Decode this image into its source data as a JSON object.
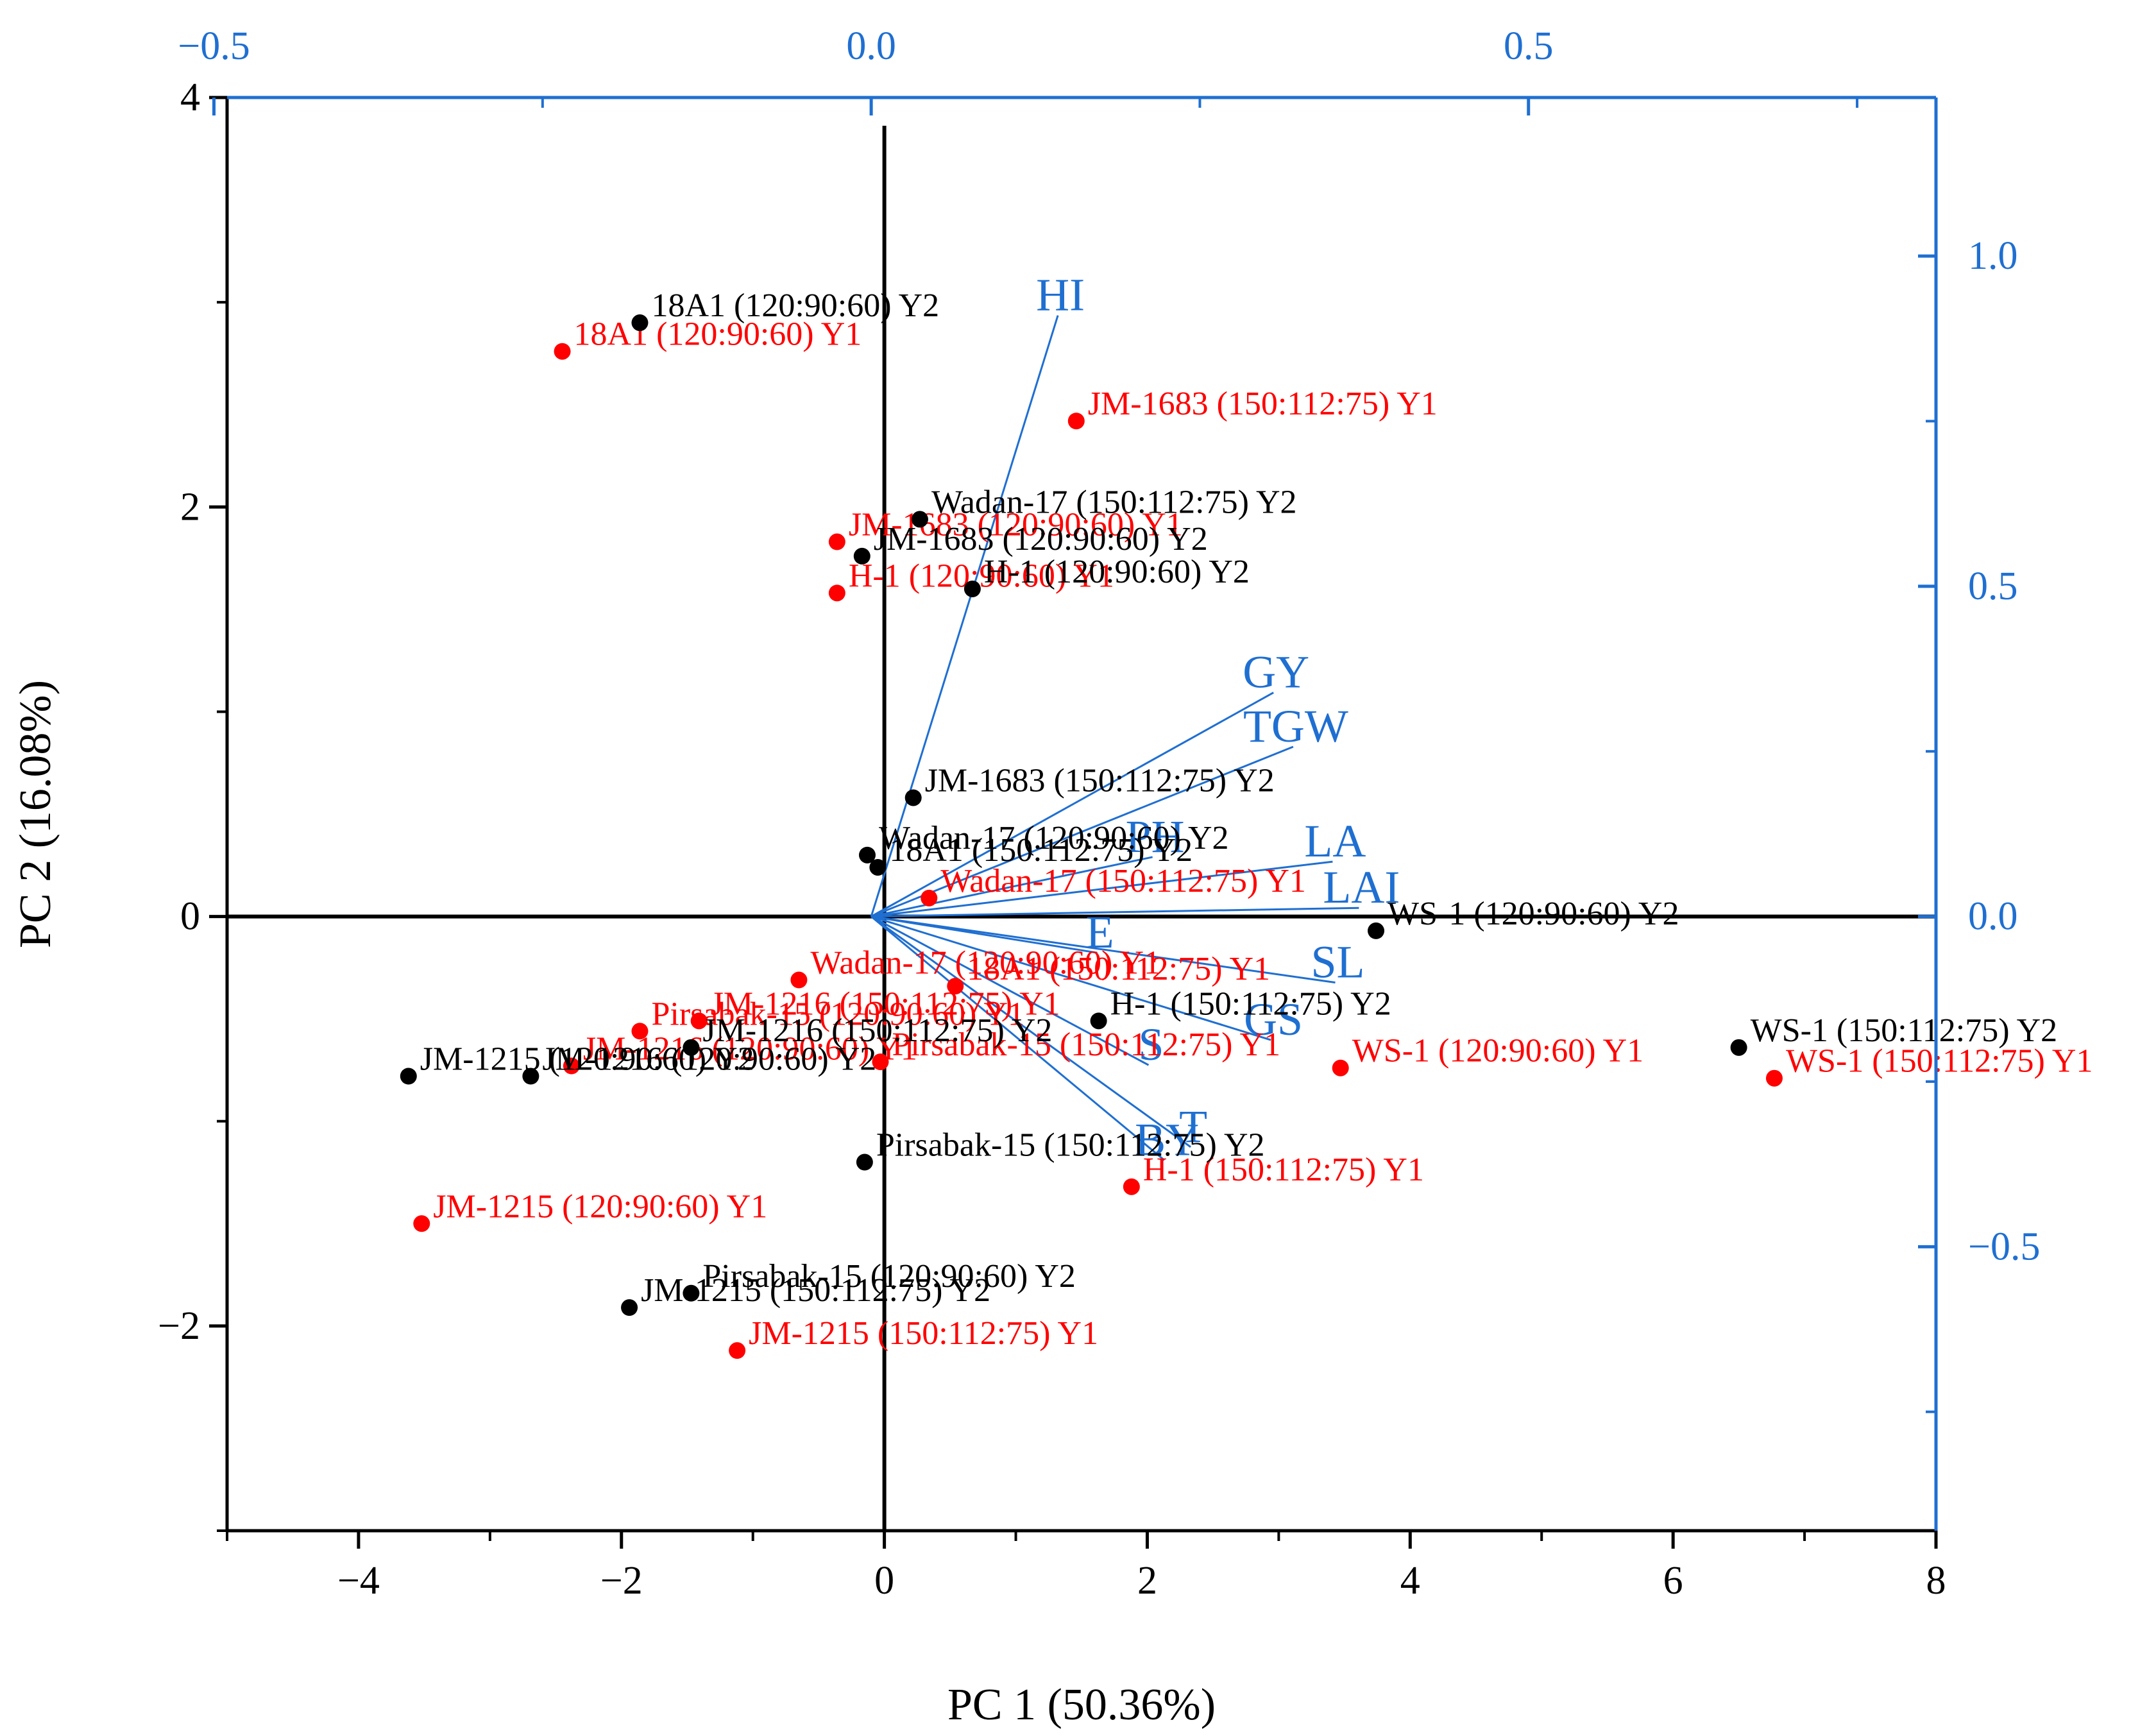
{
  "colors": {
    "y1": "#ff0000",
    "y2": "#000000",
    "loading": "#1f6fd1",
    "axis": "#000000"
  },
  "chart_data": {
    "type": "scatter",
    "subtype": "pca-biplot",
    "title": "",
    "xlabel": "PC 1 (50.36%)",
    "ylabel": "PC 2 (16.08%)",
    "xlim": [
      -5,
      8
    ],
    "ylim": [
      -3,
      4
    ],
    "xticks": [
      -4,
      -2,
      0,
      2,
      4,
      6,
      8
    ],
    "xtick_labels": [
      "−4",
      "−2",
      "0",
      "2",
      "4",
      "6",
      "8"
    ],
    "yticks": [
      -2,
      0,
      2,
      4
    ],
    "ytick_labels": [
      "−2",
      "0",
      "2",
      "4"
    ],
    "loading_axes": {
      "xlim": [
        -0.49,
        0.81
      ],
      "ylim": [
        -0.93,
        1.24
      ],
      "xticks": [
        -0.5,
        0.0,
        0.5
      ],
      "xtick_labels": [
        "−0.5",
        "0.0",
        "0.5"
      ],
      "yticks": [
        -0.5,
        0.0,
        0.5,
        1.0
      ],
      "ytick_labels": [
        "−0.5",
        "0.0",
        "0.5",
        "1.0"
      ]
    },
    "series": [
      {
        "name": "Y1",
        "color": "#ff0000",
        "points": [
          {
            "label": "18A1 (120:90:60) Y1",
            "x": -2.45,
            "y": 2.76
          },
          {
            "label": "JM-1683 (150:112:75) Y1",
            "x": 1.46,
            "y": 2.42
          },
          {
            "label": "JM-1683 (120:90:60) Y1",
            "x": -0.36,
            "y": 1.83
          },
          {
            "label": "H-1 (120:90:60) Y1",
            "x": -0.36,
            "y": 1.58
          },
          {
            "label": "Wadan-17 (150:112:75) Y1",
            "x": 0.34,
            "y": 0.09
          },
          {
            "label": "Wadan-17 (120:90:60) Y1",
            "x": -0.65,
            "y": -0.31
          },
          {
            "label": "18A1 (150:112:75) Y1",
            "x": 0.54,
            "y": -0.34
          },
          {
            "label": "Pirsabak-15 (120:90:60) Y1",
            "x": -1.86,
            "y": -0.56
          },
          {
            "label": "JM-1216 (150:112:75) Y1",
            "x": -1.41,
            "y": -0.51
          },
          {
            "label": "JM-1216 (120:90:60) Y1",
            "x": -2.38,
            "y": -0.73
          },
          {
            "label": "Pirsabak-15 (150:112:75) Y1",
            "x": -0.03,
            "y": -0.71
          },
          {
            "label": "WS-1 (120:90:60) Y1",
            "x": 3.47,
            "y": -0.74
          },
          {
            "label": "WS-1 (150:112:75) Y1",
            "x": 6.77,
            "y": -0.79
          },
          {
            "label": "H-1 (150:112:75) Y1",
            "x": 1.88,
            "y": -1.32
          },
          {
            "label": "JM-1215 (120:90:60) Y1",
            "x": -3.52,
            "y": -1.5
          },
          {
            "label": "JM-1215 (150:112:75) Y1",
            "x": -1.12,
            "y": -2.12
          }
        ]
      },
      {
        "name": "Y2",
        "color": "#000000",
        "points": [
          {
            "label": "18A1 (120:90:60) Y2",
            "x": -1.86,
            "y": 2.9
          },
          {
            "label": "Wadan-17 (150:112:75) Y2",
            "x": 0.27,
            "y": 1.94
          },
          {
            "label": "JM-1683 (120:90:60) Y2",
            "x": -0.17,
            "y": 1.76
          },
          {
            "label": "H-1 (120:90:60) Y2",
            "x": 0.67,
            "y": 1.6
          },
          {
            "label": "JM-1683 (150:112:75) Y2",
            "x": 0.22,
            "y": 0.58
          },
          {
            "label": "Wadan-17 (120:90:60) Y2",
            "x": -0.13,
            "y": 0.3
          },
          {
            "label": "18A1 (150:112:75) Y2",
            "x": -0.05,
            "y": 0.24
          },
          {
            "label": "WS-1 (120:90:60) Y2",
            "x": 3.74,
            "y": -0.07
          },
          {
            "label": "WS-1 (150:112:75) Y2",
            "x": 6.5,
            "y": -0.64
          },
          {
            "label": "H-1 (150:112:75) Y2",
            "x": 1.63,
            "y": -0.51
          },
          {
            "label": "JM-1216 (150:112:75) Y2",
            "x": -1.47,
            "y": -0.64
          },
          {
            "label": "JM-1216 (120:90:60) Y2",
            "x": -2.69,
            "y": -0.78
          },
          {
            "label": "JM-1215 (120:90:60) Y2",
            "x": -3.62,
            "y": -0.78
          },
          {
            "label": "Pirsabak-15 (150:112:75) Y2",
            "x": -0.15,
            "y": -1.2
          },
          {
            "label": "Pirsabak-15 (120:90:60) Y2",
            "x": -1.47,
            "y": -1.84
          },
          {
            "label": "JM-1215 (150:112:75) Y2",
            "x": -1.94,
            "y": -1.91
          }
        ]
      }
    ],
    "loadings": [
      {
        "name": "HI",
        "x": 0.142,
        "y": 0.91
      },
      {
        "name": "GY",
        "x": 0.306,
        "y": 0.339
      },
      {
        "name": "TGW",
        "x": 0.321,
        "y": 0.257
      },
      {
        "name": "PH",
        "x": 0.214,
        "y": 0.09
      },
      {
        "name": "LA",
        "x": 0.351,
        "y": 0.083
      },
      {
        "name": "LAI",
        "x": 0.371,
        "y": 0.013
      },
      {
        "name": "E",
        "x": 0.172,
        "y": -0.055
      },
      {
        "name": "SL",
        "x": 0.353,
        "y": -0.1
      },
      {
        "name": "GS",
        "x": 0.304,
        "y": -0.187
      },
      {
        "name": "S",
        "x": 0.211,
        "y": -0.225
      },
      {
        "name": "T",
        "x": 0.243,
        "y": -0.349
      },
      {
        "name": "BY",
        "x": 0.223,
        "y": -0.369
      }
    ]
  }
}
